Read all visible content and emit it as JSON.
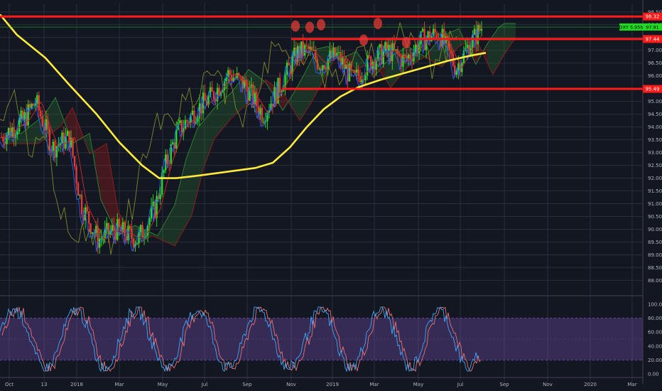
{
  "chart_data": {
    "type": "candlestick",
    "symbol": "DXY",
    "price_axis": {
      "range": [
        87.9,
        98.55
      ],
      "ticks": [
        "98.50",
        "98.00",
        "97.50",
        "97.00",
        "96.50",
        "96.00",
        "95.50",
        "95.00",
        "94.50",
        "94.00",
        "93.50",
        "93.00",
        "92.50",
        "92.00",
        "91.50",
        "91.00",
        "90.50",
        "90.00",
        "89.50",
        "89.00",
        "88.50",
        "88.00"
      ]
    },
    "time_axis": {
      "labels": [
        "Oct",
        "13",
        "2018",
        "Mar",
        "May",
        "Jul",
        "Sep",
        "Nov",
        "2019",
        "Mar",
        "May",
        "Jul",
        "Sep",
        "Nov",
        "2020",
        "Mar"
      ]
    },
    "horizontal_levels": [
      {
        "label": "98.32",
        "value": 98.32,
        "color": "#ff1a1a"
      },
      {
        "label": "97.44",
        "value": 97.44,
        "color": "#ff1a1a"
      },
      {
        "label": "95.49",
        "value": 95.49,
        "color": "#ff1a1a"
      }
    ],
    "last_price": {
      "label": "DXY 5.95h",
      "value_label": "97.91",
      "value": 97.91,
      "color": "#1cdc1c"
    },
    "moving_average": {
      "color": "#ffeb3b",
      "points": [
        [
          0,
          98.4
        ],
        [
          3,
          97.6
        ],
        [
          8,
          96.7
        ],
        [
          12,
          95.7
        ],
        [
          17,
          94.5
        ],
        [
          21,
          93.4
        ],
        [
          25,
          92.5
        ],
        [
          28,
          92.0
        ],
        [
          31,
          92.0
        ],
        [
          35,
          92.1
        ],
        [
          40,
          92.25
        ],
        [
          45,
          92.4
        ],
        [
          48,
          92.6
        ],
        [
          51,
          93.2
        ],
        [
          54,
          94.0
        ],
        [
          57,
          94.7
        ],
        [
          60,
          95.2
        ],
        [
          63,
          95.55
        ],
        [
          67,
          95.85
        ],
        [
          71,
          96.1
        ],
        [
          75,
          96.35
        ],
        [
          79,
          96.6
        ],
        [
          83,
          96.8
        ],
        [
          85.5,
          96.9
        ]
      ]
    },
    "oscillator": {
      "axis_ticks": [
        "100.00",
        "80.00",
        "60.00",
        "40.00",
        "20.00",
        "0.00"
      ],
      "range": [
        0,
        100
      ],
      "band": [
        20,
        80
      ]
    }
  }
}
